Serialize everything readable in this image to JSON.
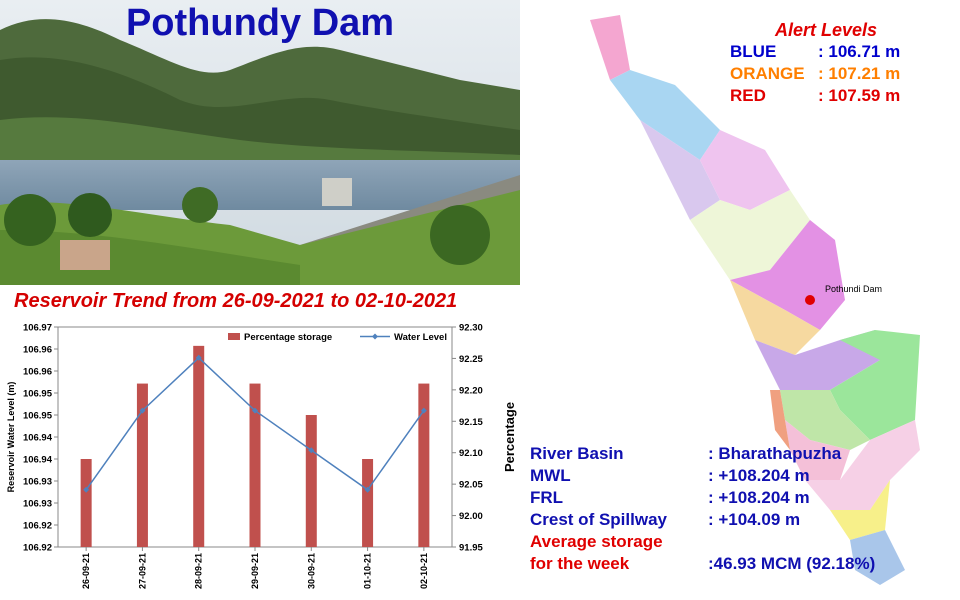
{
  "title": "Pothundy Dam",
  "trend_title": "Reservoir Trend from 26-09-2021 to 02-10-2021",
  "alerts": {
    "title": "Alert Levels",
    "levels": [
      {
        "name": "BLUE",
        "value": ": 106.71 m",
        "color": "#0000cc"
      },
      {
        "name": "ORANGE",
        "value": ": 107.21 m",
        "color": "#ff7f00"
      },
      {
        "name": "RED",
        "value": ": 107.59 m",
        "color": "#e00000"
      }
    ]
  },
  "map_label": "Pothundi Dam",
  "info": [
    {
      "key": "River Basin",
      "value": ": Bharathapuzha"
    },
    {
      "key": "MWL",
      "value": ": +108.204 m"
    },
    {
      "key": "FRL",
      "value": ": +108.204 m"
    },
    {
      "key": "Crest of Spillway",
      "value": ": +104.09 m"
    },
    {
      "key": "Average storage",
      "value": ""
    },
    {
      "key": "for the week",
      "value": ":46.93 MCM (92.18%)"
    }
  ],
  "chart_data": {
    "type": "bar+line",
    "categories": [
      "26-09-21",
      "27-09-21",
      "28-09-21",
      "29-09-21",
      "30-09-21",
      "01-10-21",
      "02-10-21"
    ],
    "series": [
      {
        "name": "Percentage storage",
        "type": "bar",
        "axis": "right",
        "color": "#c0504d",
        "values": [
          92.09,
          92.21,
          92.27,
          92.21,
          92.16,
          92.09,
          92.21
        ]
      },
      {
        "name": "Water Level",
        "type": "line",
        "axis": "left",
        "color": "#4f81bd",
        "values": [
          106.933,
          106.951,
          106.963,
          106.951,
          106.942,
          106.933,
          106.951
        ]
      }
    ],
    "y_left": {
      "label": "Reservoir Water Level (m)",
      "min": 106.92,
      "max": 106.97,
      "ticks": [
        "106.92",
        "106.92",
        "106.93",
        "106.93",
        "106.94",
        "106.94",
        "106.95",
        "106.95",
        "106.96",
        "106.96",
        "106.97"
      ]
    },
    "y_right": {
      "label": "Percentage",
      "min": 91.95,
      "max": 92.3,
      "ticks": [
        "91.95",
        "92.00",
        "92.05",
        "92.10",
        "92.15",
        "92.20",
        "92.25",
        "92.30"
      ]
    },
    "legend": "top"
  }
}
